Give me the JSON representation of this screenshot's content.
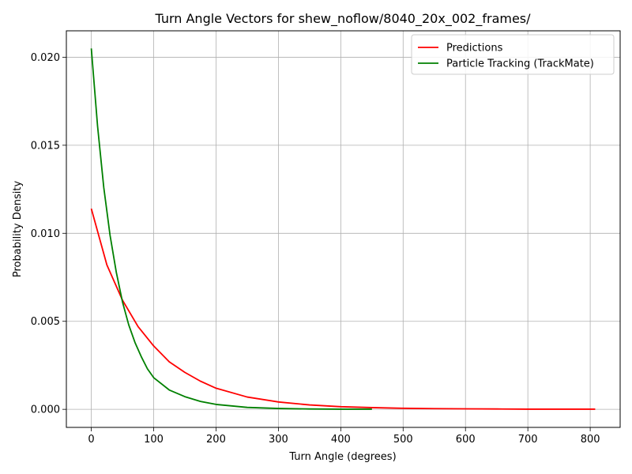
{
  "chart_data": {
    "type": "line",
    "title": "Turn Angle Vectors for shew_noflow/8040_20x_002_frames/",
    "xlabel": "Turn Angle (degrees)",
    "ylabel": "Probability Density",
    "xlim": [
      -40,
      848
    ],
    "ylim": [
      -0.001025,
      0.0215
    ],
    "xticks": [
      0,
      100,
      200,
      300,
      400,
      500,
      600,
      700,
      800
    ],
    "xtick_labels": [
      "0",
      "100",
      "200",
      "300",
      "400",
      "500",
      "600",
      "700",
      "800"
    ],
    "yticks": [
      0.0,
      0.005,
      0.01,
      0.015,
      0.02
    ],
    "ytick_labels": [
      "0.000",
      "0.005",
      "0.010",
      "0.015",
      "0.020"
    ],
    "grid": true,
    "legend_position": "top-right",
    "series": [
      {
        "name": "Predictions",
        "color": "#ff0000",
        "x": [
          0,
          25,
          50,
          75,
          100,
          125,
          150,
          175,
          200,
          250,
          300,
          350,
          400,
          450,
          500,
          550,
          600,
          650,
          700,
          750,
          808
        ],
        "y": [
          0.0114,
          0.0082,
          0.0062,
          0.0047,
          0.0036,
          0.0027,
          0.0021,
          0.0016,
          0.0012,
          0.0007,
          0.00042,
          0.00025,
          0.00015,
          0.0001,
          6e-05,
          4e-05,
          3e-05,
          2e-05,
          1e-05,
          1e-05,
          1e-05
        ]
      },
      {
        "name": "Particle Tracking (TrackMate)",
        "color": "#008000",
        "x": [
          0,
          10,
          20,
          30,
          40,
          50,
          60,
          70,
          80,
          90,
          100,
          125,
          150,
          175,
          200,
          250,
          300,
          350,
          400,
          450
        ],
        "y": [
          0.0205,
          0.0161,
          0.0126,
          0.0099,
          0.0078,
          0.0061,
          0.0048,
          0.0038,
          0.003,
          0.0023,
          0.0018,
          0.0011,
          0.00072,
          0.00045,
          0.00028,
          0.00011,
          5e-05,
          2e-05,
          1e-05,
          1e-05
        ]
      }
    ]
  }
}
